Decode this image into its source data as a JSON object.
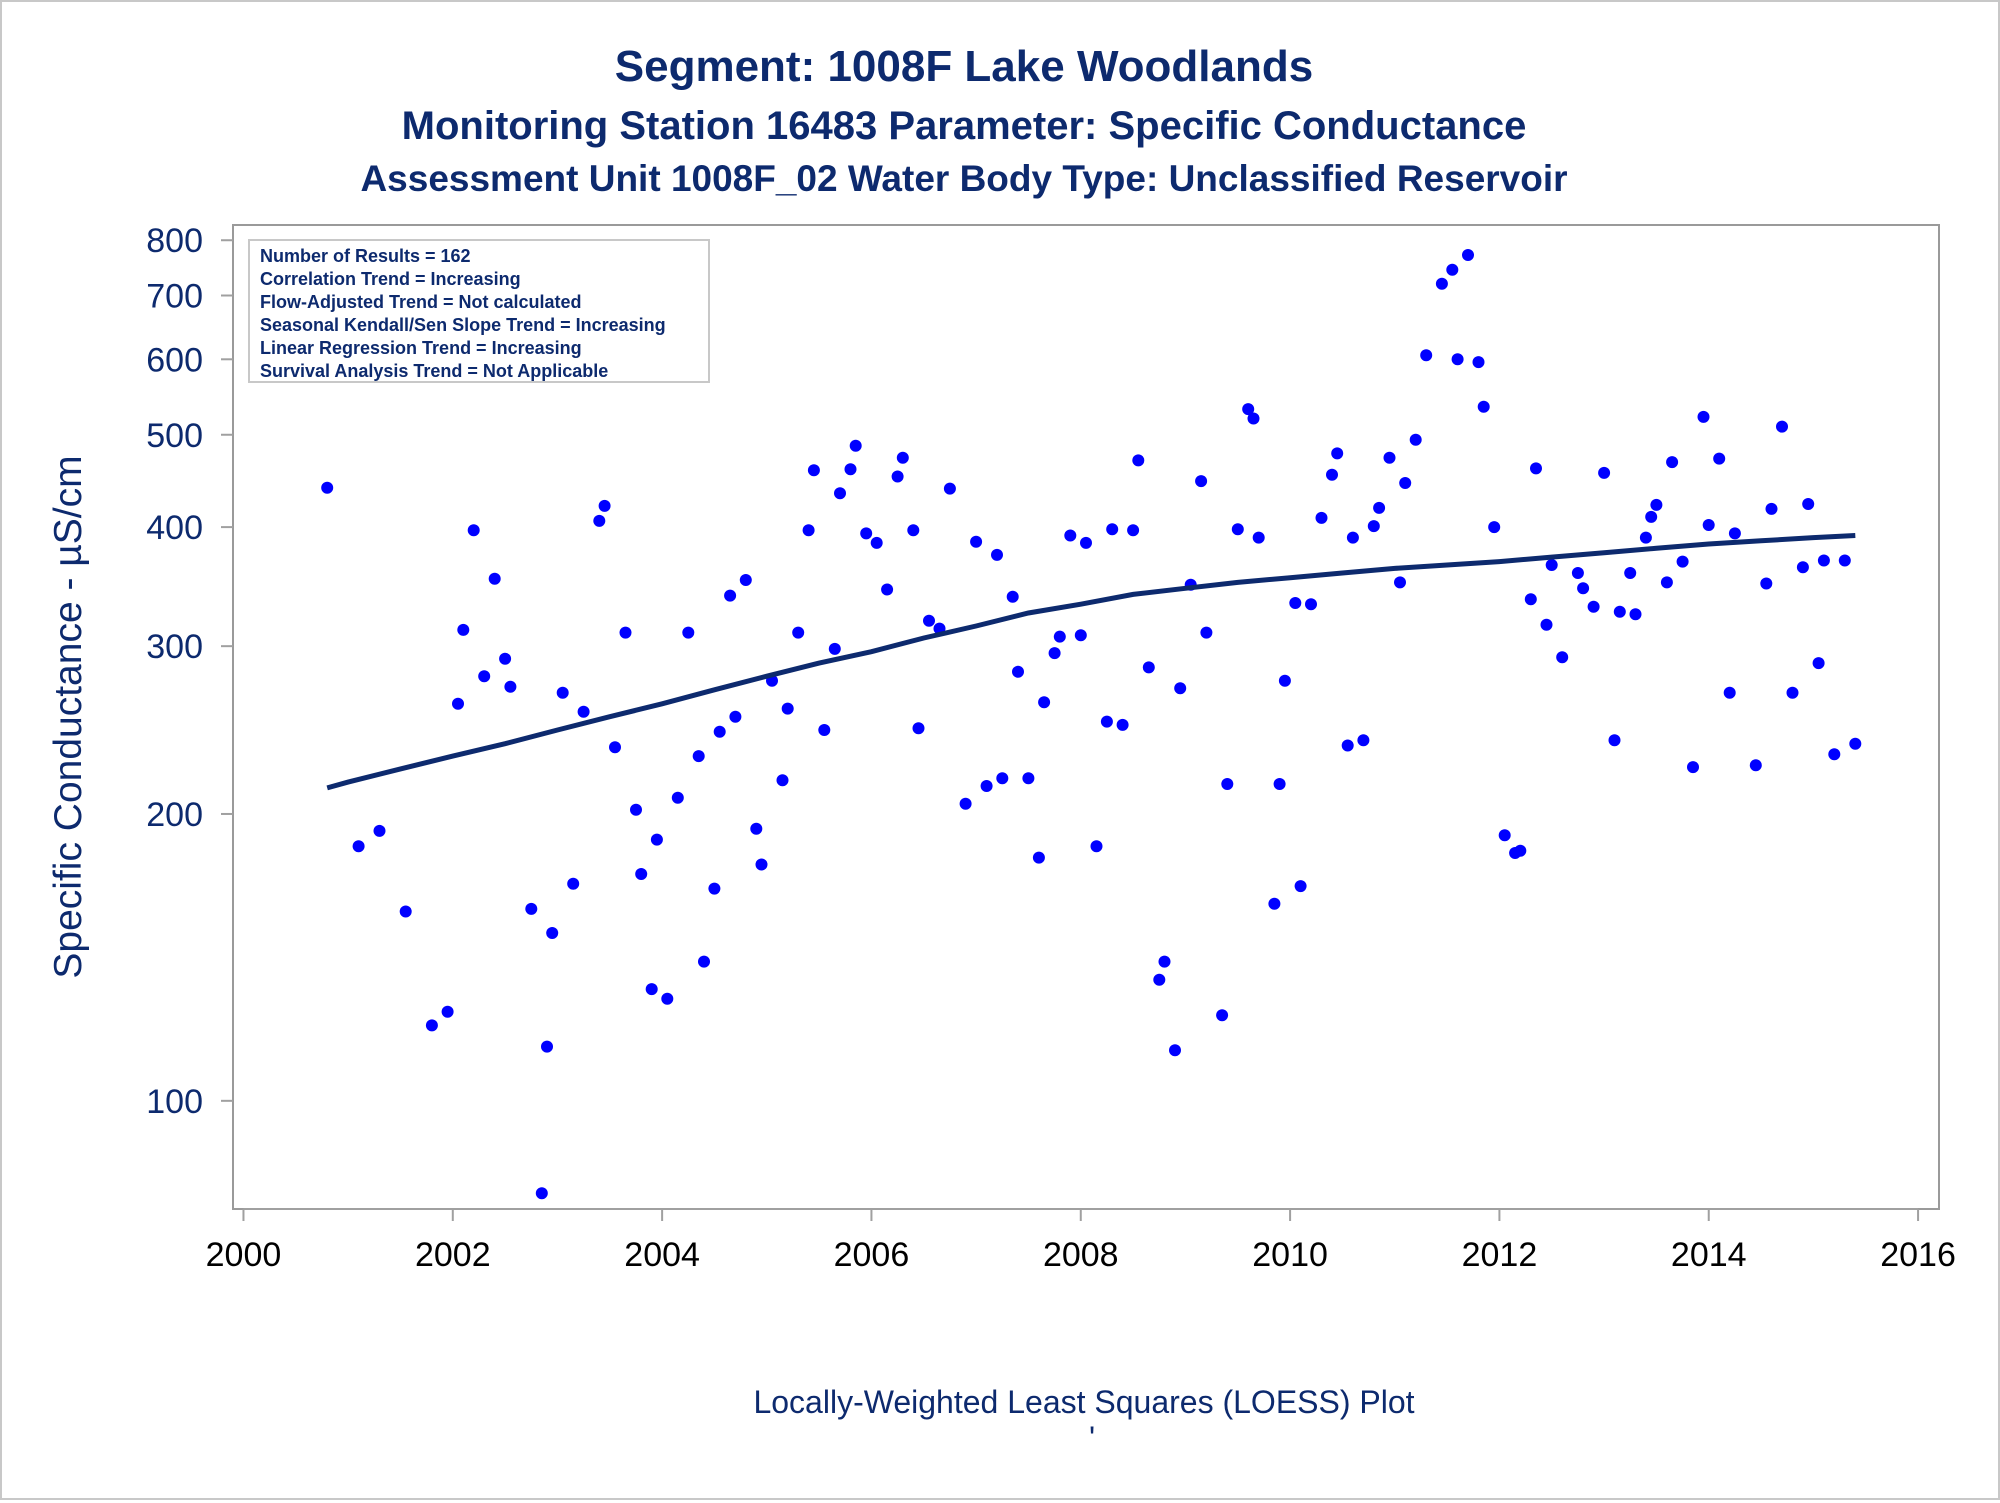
{
  "colors": {
    "text": "#0d2a6e",
    "points": "#0000ff",
    "curve": "#0d2a6e",
    "frame": "#9a9a9a",
    "axis": "#a0a0a0"
  },
  "chart_data": {
    "type": "scatter",
    "title": "Segment: 1008F  Lake Woodlands",
    "subtitle": "Monitoring Station 16483 Parameter: Specific Conductance",
    "subtitle2": "Assessment Unit 1008F_02   Water Body Type: Unclassified Reservoir",
    "ylabel": "Specific Conductance -  µS/cm",
    "xlabel": "",
    "footnote": "Locally-Weighted Least Squares (LOESS) Plot",
    "footnote_mark": "'",
    "y_scale": "log",
    "xlim": [
      1999.9,
      2016.2
    ],
    "ylim": [
      77,
      830
    ],
    "x_ticks": [
      2000,
      2002,
      2004,
      2006,
      2008,
      2010,
      2012,
      2014,
      2016
    ],
    "y_ticks": [
      100,
      200,
      300,
      400,
      500,
      600,
      700,
      800
    ],
    "grid": false,
    "legend": "top-left",
    "info_lines": [
      "Number of Results = 162",
      "Correlation Trend = Increasing",
      "Flow-Adjusted Trend = Not calculated",
      "Seasonal Kendall/Sen Slope Trend = Increasing",
      "Linear Regression Trend = Increasing",
      "Survival Analysis Trend = Not Applicable"
    ],
    "series": [
      {
        "kind": "points",
        "points": [
          [
            2000.8,
            440
          ],
          [
            2001.1,
            185
          ],
          [
            2001.3,
            192
          ],
          [
            2001.55,
            158
          ],
          [
            2001.8,
            120
          ],
          [
            2001.95,
            124
          ],
          [
            2002.05,
            261
          ],
          [
            2002.1,
            312
          ],
          [
            2002.2,
            397
          ],
          [
            2002.3,
            279
          ],
          [
            2002.4,
            353
          ],
          [
            2002.5,
            291
          ],
          [
            2002.55,
            272
          ],
          [
            2002.75,
            159
          ],
          [
            2002.85,
            80
          ],
          [
            2002.9,
            114
          ],
          [
            2002.95,
            150
          ],
          [
            2003.05,
            268
          ],
          [
            2003.15,
            169
          ],
          [
            2003.25,
            256
          ],
          [
            2003.4,
            406
          ],
          [
            2003.45,
            421
          ],
          [
            2003.55,
            235
          ],
          [
            2003.65,
            310
          ],
          [
            2003.75,
            202
          ],
          [
            2003.8,
            173
          ],
          [
            2003.9,
            131
          ],
          [
            2003.95,
            188
          ],
          [
            2004.05,
            128
          ],
          [
            2004.15,
            208
          ],
          [
            2004.25,
            310
          ],
          [
            2004.35,
            230
          ],
          [
            2004.4,
            140
          ],
          [
            2004.5,
            167
          ],
          [
            2004.55,
            244
          ],
          [
            2004.65,
            339
          ],
          [
            2004.7,
            253
          ],
          [
            2004.8,
            352
          ],
          [
            2004.9,
            193
          ],
          [
            2004.95,
            177
          ],
          [
            2005.05,
            276
          ],
          [
            2005.15,
            217
          ],
          [
            2005.2,
            258
          ],
          [
            2005.3,
            310
          ],
          [
            2005.4,
            397
          ],
          [
            2005.45,
            459
          ],
          [
            2005.55,
            245
          ],
          [
            2005.65,
            298
          ],
          [
            2005.7,
            434
          ],
          [
            2005.8,
            460
          ],
          [
            2005.85,
            487
          ],
          [
            2005.95,
            394
          ],
          [
            2006.05,
            385
          ],
          [
            2006.15,
            344
          ],
          [
            2006.25,
            452
          ],
          [
            2006.3,
            473
          ],
          [
            2006.4,
            397
          ],
          [
            2006.45,
            246
          ],
          [
            2006.55,
            319
          ],
          [
            2006.65,
            313
          ],
          [
            2006.75,
            439
          ],
          [
            2006.9,
            205
          ],
          [
            2007.0,
            386
          ],
          [
            2007.1,
            214
          ],
          [
            2007.2,
            374
          ],
          [
            2007.25,
            218
          ],
          [
            2007.35,
            338
          ],
          [
            2007.4,
            282
          ],
          [
            2007.5,
            218
          ],
          [
            2007.6,
            180
          ],
          [
            2007.65,
            262
          ],
          [
            2007.75,
            295
          ],
          [
            2007.8,
            307
          ],
          [
            2007.9,
            392
          ],
          [
            2008.0,
            308
          ],
          [
            2008.05,
            385
          ],
          [
            2008.15,
            185
          ],
          [
            2008.25,
            250
          ],
          [
            2008.3,
            398
          ],
          [
            2008.4,
            248
          ],
          [
            2008.5,
            397
          ],
          [
            2008.55,
            470
          ],
          [
            2008.65,
            285
          ],
          [
            2008.75,
            134
          ],
          [
            2008.8,
            140
          ],
          [
            2008.9,
            113
          ],
          [
            2008.95,
            271
          ],
          [
            2009.05,
            348
          ],
          [
            2009.15,
            447
          ],
          [
            2009.2,
            310
          ],
          [
            2009.35,
            123
          ],
          [
            2009.4,
            215
          ],
          [
            2009.5,
            398
          ],
          [
            2009.6,
            532
          ],
          [
            2009.65,
            520
          ],
          [
            2009.7,
            390
          ],
          [
            2009.85,
            161
          ],
          [
            2009.9,
            215
          ],
          [
            2009.95,
            276
          ],
          [
            2010.05,
            333
          ],
          [
            2010.1,
            168
          ],
          [
            2010.2,
            332
          ],
          [
            2010.3,
            409
          ],
          [
            2010.4,
            454
          ],
          [
            2010.45,
            478
          ],
          [
            2010.55,
            236
          ],
          [
            2010.6,
            390
          ],
          [
            2010.7,
            239
          ],
          [
            2010.8,
            401
          ],
          [
            2010.85,
            419
          ],
          [
            2010.95,
            473
          ],
          [
            2011.05,
            350
          ],
          [
            2011.1,
            445
          ],
          [
            2011.2,
            494
          ],
          [
            2011.3,
            606
          ],
          [
            2011.45,
            720
          ],
          [
            2011.55,
            745
          ],
          [
            2011.6,
            600
          ],
          [
            2011.7,
            772
          ],
          [
            2011.8,
            596
          ],
          [
            2011.85,
            535
          ],
          [
            2011.95,
            400
          ],
          [
            2012.05,
            190
          ],
          [
            2012.15,
            182
          ],
          [
            2012.2,
            183
          ],
          [
            2012.3,
            336
          ],
          [
            2012.35,
            461
          ],
          [
            2012.45,
            316
          ],
          [
            2012.5,
            365
          ],
          [
            2012.6,
            292
          ],
          [
            2012.75,
            358
          ],
          [
            2012.8,
            345
          ],
          [
            2012.9,
            330
          ],
          [
            2013.0,
            456
          ],
          [
            2013.1,
            239
          ],
          [
            2013.15,
            326
          ],
          [
            2013.25,
            358
          ],
          [
            2013.3,
            324
          ],
          [
            2013.4,
            390
          ],
          [
            2013.45,
            410
          ],
          [
            2013.5,
            422
          ],
          [
            2013.6,
            350
          ],
          [
            2013.65,
            468
          ],
          [
            2013.75,
            368
          ],
          [
            2013.85,
            224
          ],
          [
            2013.95,
            522
          ],
          [
            2014.0,
            402
          ],
          [
            2014.1,
            472
          ],
          [
            2014.2,
            268
          ],
          [
            2014.25,
            394
          ],
          [
            2014.45,
            225
          ],
          [
            2014.55,
            349
          ],
          [
            2014.6,
            418
          ],
          [
            2014.7,
            510
          ],
          [
            2014.8,
            268
          ],
          [
            2014.9,
            363
          ],
          [
            2014.95,
            423
          ],
          [
            2015.05,
            288
          ],
          [
            2015.1,
            369
          ],
          [
            2015.2,
            231
          ],
          [
            2015.3,
            369
          ],
          [
            2015.4,
            237
          ]
        ]
      },
      {
        "kind": "loess",
        "x": [
          2000.8,
          2001.0,
          2001.5,
          2002.0,
          2002.5,
          2003.0,
          2003.5,
          2004.0,
          2004.5,
          2005.0,
          2005.5,
          2006.0,
          2006.5,
          2007.0,
          2007.5,
          2008.0,
          2008.5,
          2009.0,
          2009.5,
          2010.0,
          2010.5,
          2011.0,
          2011.5,
          2012.0,
          2012.5,
          2013.0,
          2013.5,
          2014.0,
          2014.5,
          2015.0,
          2015.4
        ],
        "y": [
          213,
          216,
          223,
          230,
          237,
          245,
          253,
          261,
          270,
          279,
          288,
          296,
          306,
          315,
          325,
          332,
          340,
          345,
          350,
          354,
          358,
          362,
          365,
          368,
          372,
          376,
          380,
          384,
          387,
          390,
          392
        ]
      }
    ]
  }
}
